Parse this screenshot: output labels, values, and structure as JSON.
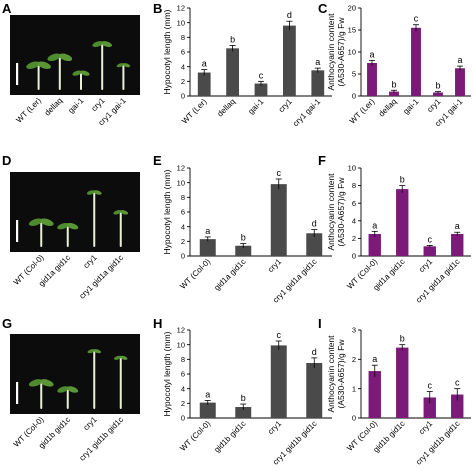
{
  "panels": [
    {
      "letter": "A",
      "kind": "photo",
      "labels": [
        "WT (Ler)",
        "dellaq",
        "gai-1",
        "cry1",
        "cry1 gai-1"
      ],
      "background": "#0c0c0c",
      "scale_bar_color": "#ffffff",
      "seedlings": [
        {
          "stem": 0.3,
          "leaf": 1.0
        },
        {
          "stem": 0.42,
          "leaf": 1.0
        },
        {
          "stem": 0.18,
          "leaf": 0.7
        },
        {
          "stem": 0.62,
          "leaf": 0.8
        },
        {
          "stem": 0.3,
          "leaf": 0.55
        }
      ]
    },
    {
      "letter": "B",
      "kind": "chart"
    },
    {
      "letter": "C",
      "kind": "chart"
    },
    {
      "letter": "D",
      "kind": "photo",
      "labels": [
        "WT (Col-0)",
        "gid1a gid1c",
        "cry1",
        "cry1 gid1a gid1c"
      ],
      "background": "#0c0c0c",
      "scale_bar_color": "#ffffff",
      "seedlings": [
        {
          "stem": 0.3,
          "leaf": 1.0
        },
        {
          "stem": 0.24,
          "leaf": 0.85
        },
        {
          "stem": 0.75,
          "leaf": 0.6
        },
        {
          "stem": 0.45,
          "leaf": 0.6
        }
      ]
    },
    {
      "letter": "E",
      "kind": "chart"
    },
    {
      "letter": "F",
      "kind": "chart"
    },
    {
      "letter": "G",
      "kind": "photo",
      "labels": [
        "WT (Col-0)",
        "gid1b gid1c",
        "cry1",
        "cry1 gid1b gid1c"
      ],
      "background": "#0c0c0c",
      "scale_bar_color": "#ffffff",
      "seedlings": [
        {
          "stem": 0.32,
          "leaf": 1.0
        },
        {
          "stem": 0.22,
          "leaf": 0.85
        },
        {
          "stem": 0.8,
          "leaf": 0.55
        },
        {
          "stem": 0.7,
          "leaf": 0.55
        }
      ]
    },
    {
      "letter": "H",
      "kind": "chart"
    },
    {
      "letter": "I",
      "kind": "chart"
    }
  ],
  "colors": {
    "hypocotyl_bar": "#4a4a4a",
    "anthocyanin_bar": "#7b1a79",
    "axis": "#000000"
  },
  "chart_data": [
    {
      "panel": "B",
      "type": "bar",
      "categories": [
        "WT (Ler)",
        "dellaq",
        "gai-1",
        "cry1",
        "cry1 gai-1"
      ],
      "values": [
        3.2,
        6.5,
        1.7,
        9.6,
        3.5
      ],
      "errors": [
        0.4,
        0.4,
        0.3,
        0.6,
        0.3
      ],
      "significance": [
        "a",
        "b",
        "c",
        "d",
        "a"
      ],
      "ylabel": "Hypocotyl length (mm)",
      "ylim": [
        0,
        12
      ],
      "yticks": [
        0,
        2,
        4,
        6,
        8,
        10,
        12
      ],
      "color": "#4a4a4a",
      "grid": false
    },
    {
      "panel": "C",
      "type": "bar",
      "categories": [
        "WT (Ler)",
        "dellaq",
        "gai-1",
        "cry1",
        "cry1 gai-1"
      ],
      "values": [
        7.5,
        1.0,
        15.5,
        0.8,
        6.3
      ],
      "errors": [
        0.6,
        0.3,
        0.7,
        0.2,
        0.5
      ],
      "significance": [
        "a",
        "b",
        "c",
        "b",
        "a"
      ],
      "ylabel": "Anthocyanin content (A530-A657)/g Fw",
      "ylabel_lines": [
        "Anthocyanin content",
        "(A530-A657)/g Fw"
      ],
      "ylim": [
        0,
        20
      ],
      "yticks": [
        0,
        5,
        10,
        15,
        20
      ],
      "color": "#7b1a79",
      "grid": false
    },
    {
      "panel": "E",
      "type": "bar",
      "categories": [
        "WT (Col-0)",
        "gid1a gid1c",
        "cry1",
        "cry1 gid1a gid1c"
      ],
      "values": [
        2.3,
        1.4,
        9.8,
        3.1
      ],
      "errors": [
        0.3,
        0.3,
        0.7,
        0.5
      ],
      "significance": [
        "a",
        "b",
        "c",
        "d"
      ],
      "ylabel": "Hypocotyl length (mm)",
      "ylim": [
        0,
        12
      ],
      "yticks": [
        0,
        2,
        4,
        6,
        8,
        10,
        12
      ],
      "color": "#4a4a4a",
      "grid": false
    },
    {
      "panel": "F",
      "type": "bar",
      "categories": [
        "WT (Col-0)",
        "gid1a gid1c",
        "cry1",
        "cry1 gid1a gid1c"
      ],
      "values": [
        2.5,
        7.6,
        1.1,
        2.5
      ],
      "errors": [
        0.3,
        0.4,
        0.1,
        0.2
      ],
      "significance": [
        "a",
        "b",
        "c",
        "a"
      ],
      "ylabel": "Anthocyanin content (A530-A657)/g Fw",
      "ylabel_lines": [
        "Anthocyanin content",
        "(A530-A657)/g Fw"
      ],
      "ylim": [
        0,
        10
      ],
      "yticks": [
        0,
        2,
        4,
        6,
        8,
        10
      ],
      "color": "#7b1a79",
      "grid": false
    },
    {
      "panel": "H",
      "type": "bar",
      "categories": [
        "WT (Col-0)",
        "gid1b gid1c",
        "cry1",
        "cry1 gid1b gid1c"
      ],
      "values": [
        2.1,
        1.5,
        9.9,
        7.5
      ],
      "errors": [
        0.3,
        0.4,
        0.6,
        0.7
      ],
      "significance": [
        "a",
        "b",
        "c",
        "d"
      ],
      "ylabel": "Hypocotyl length (mm)",
      "ylim": [
        0,
        12
      ],
      "yticks": [
        0,
        2,
        4,
        6,
        8,
        10,
        12
      ],
      "color": "#4a4a4a",
      "grid": false
    },
    {
      "panel": "I",
      "type": "bar",
      "categories": [
        "WT (Col-0)",
        "gid1b gid1c",
        "cry1",
        "cry1 gid1b gid1c"
      ],
      "values": [
        1.6,
        2.4,
        0.7,
        0.8
      ],
      "errors": [
        0.2,
        0.1,
        0.2,
        0.2
      ],
      "significance": [
        "a",
        "b",
        "c",
        "c"
      ],
      "ylabel": "Anthocyanin content (A530-A657)/g Fw",
      "ylabel_lines": [
        "Anthocyanin content",
        "(A530-A657)/g Fw"
      ],
      "ylim": [
        0,
        3
      ],
      "yticks": [
        0,
        1,
        2,
        3
      ],
      "color": "#7b1a79",
      "grid": false
    }
  ]
}
